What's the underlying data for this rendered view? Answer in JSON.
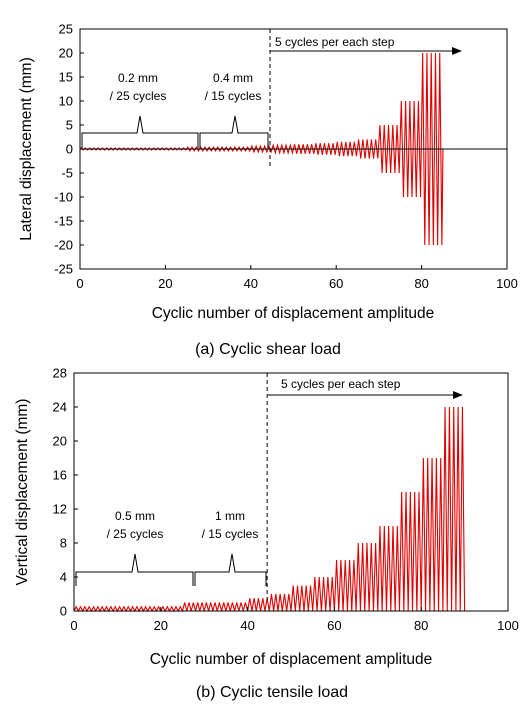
{
  "chart_data": [
    {
      "type": "line",
      "caption": "(a)  Cyclic  shear  load",
      "xlabel": "Cyclic number  of  displacement amplitude",
      "ylabel": "Lateral displacement (mm)",
      "xlim": [
        0,
        100
      ],
      "ylim": [
        -25,
        25
      ],
      "xticks": [
        "0",
        "20",
        "40",
        "60",
        "80",
        "100"
      ],
      "yticks": [
        "25",
        "20",
        "15",
        "10",
        "5",
        "0",
        "-5",
        "-10",
        "-15",
        "-20",
        "-25"
      ],
      "series": [
        {
          "color": "#e00000",
          "steps": [
            {
              "amplitude": 0.2,
              "cycles": 25
            },
            {
              "amplitude": 0.4,
              "cycles": 15
            },
            {
              "amplitude": 0.6,
              "cycles": 5
            },
            {
              "amplitude": 0.8,
              "cycles": 5
            },
            {
              "amplitude": 1.0,
              "cycles": 5
            },
            {
              "amplitude": 1.2,
              "cycles": 5
            },
            {
              "amplitude": 1.5,
              "cycles": 5
            },
            {
              "amplitude": 2.0,
              "cycles": 5
            },
            {
              "amplitude": 5.0,
              "cycles": 5
            },
            {
              "amplitude": 10.0,
              "cycles": 5
            },
            {
              "amplitude": 20.0,
              "cycles": 5
            }
          ]
        }
      ],
      "annotations": {
        "step1_line1": "0.2 mm",
        "step1_line2": "/ 25 cycles",
        "step2_line1": "0.4 mm",
        "step2_line2": "/ 15 cycles",
        "arrow_label": "5 cycles per each step",
        "divider_x": 44.5
      }
    },
    {
      "type": "line",
      "caption": "(b)  Cyclic  tensile  load",
      "xlabel": "Cyclic number  of  displacement amplitude",
      "ylabel": "Vertical displacement (mm)",
      "xlim": [
        0,
        100
      ],
      "ylim": [
        0,
        28
      ],
      "xticks": [
        "0",
        "20",
        "40",
        "60",
        "80",
        "100"
      ],
      "yticks": [
        "28",
        "24",
        "20",
        "16",
        "12",
        "8",
        "4",
        "0"
      ],
      "series": [
        {
          "color": "#e00000",
          "steps": [
            {
              "amplitude": 0.5,
              "cycles": 25
            },
            {
              "amplitude": 1.0,
              "cycles": 15
            },
            {
              "amplitude": 1.5,
              "cycles": 5
            },
            {
              "amplitude": 2.0,
              "cycles": 5
            },
            {
              "amplitude": 3.0,
              "cycles": 5
            },
            {
              "amplitude": 4.0,
              "cycles": 5
            },
            {
              "amplitude": 6.0,
              "cycles": 5
            },
            {
              "amplitude": 8.0,
              "cycles": 5
            },
            {
              "amplitude": 10.0,
              "cycles": 5
            },
            {
              "amplitude": 14.0,
              "cycles": 5
            },
            {
              "amplitude": 18.0,
              "cycles": 5
            },
            {
              "amplitude": 24.0,
              "cycles": 5
            }
          ]
        }
      ],
      "annotations": {
        "step1_line1": "0.5 mm",
        "step1_line2": "/ 25 cycles",
        "step2_line1": "1 mm",
        "step2_line2": "/ 15 cycles",
        "arrow_label": "5 cycles per each step",
        "divider_x": 44.5
      }
    }
  ]
}
